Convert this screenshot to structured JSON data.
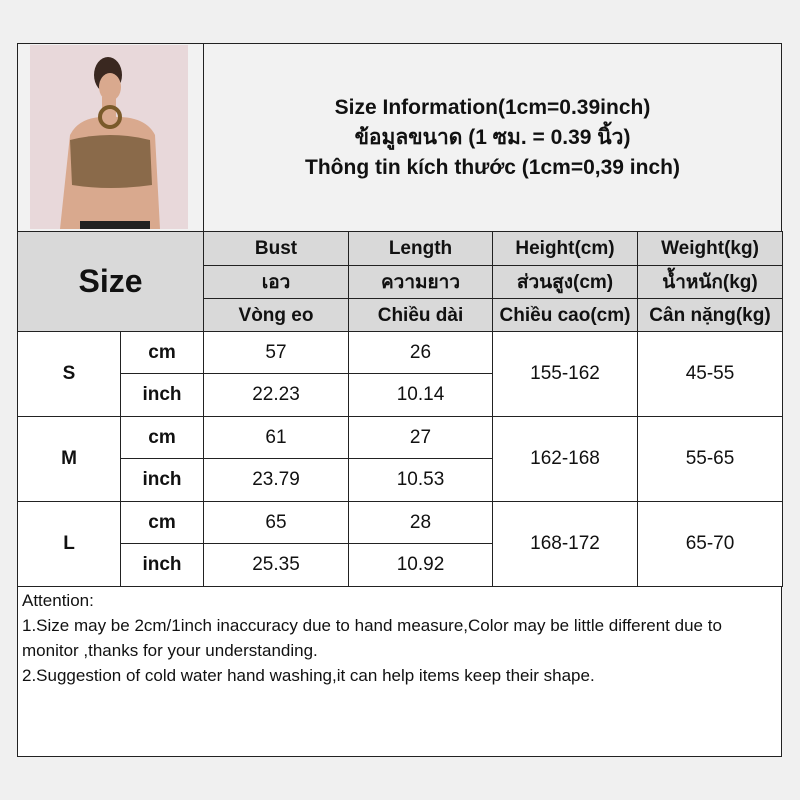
{
  "title": {
    "line1": "Size Information(1cm=0.39inch)",
    "line2": "ข้อมูลขนาด (1 ซม. = 0.39 นิ้ว)",
    "line3": "Thông tin kích thước (1cm=0,39 inch)"
  },
  "size_label": "Size",
  "columns": [
    {
      "en": "Bust",
      "th": "เอว",
      "vi": "Vòng eo"
    },
    {
      "en": "Length",
      "th": "ความยาว",
      "vi": "Chiều dài"
    },
    {
      "en": "Height(cm)",
      "th": "ส่วนสูง(cm)",
      "vi": "Chiều cao(cm)"
    },
    {
      "en": "Weight(kg)",
      "th": "น้ำหนัก(kg)",
      "vi": "Cân nặng(kg)"
    }
  ],
  "units": {
    "cm": "cm",
    "inch": "inch"
  },
  "rows": [
    {
      "size": "S",
      "cm": [
        "57",
        "26"
      ],
      "inch": [
        "22.23",
        "10.14"
      ],
      "height": "155-162",
      "weight": "45-55"
    },
    {
      "size": "M",
      "cm": [
        "61",
        "27"
      ],
      "inch": [
        "23.79",
        "10.53"
      ],
      "height": "162-168",
      "weight": "55-65"
    },
    {
      "size": "L",
      "cm": [
        "65",
        "28"
      ],
      "inch": [
        "25.35",
        "10.92"
      ],
      "height": "168-172",
      "weight": "65-70"
    }
  ],
  "notes": {
    "heading": "Attention:",
    "line1": "1.Size may be 2cm/1inch inaccuracy due to hand measure,Color may be little different due to monitor ,thanks for your understanding.",
    "line2": "2.Suggestion of cold water hand washing,it can help items keep their shape."
  }
}
